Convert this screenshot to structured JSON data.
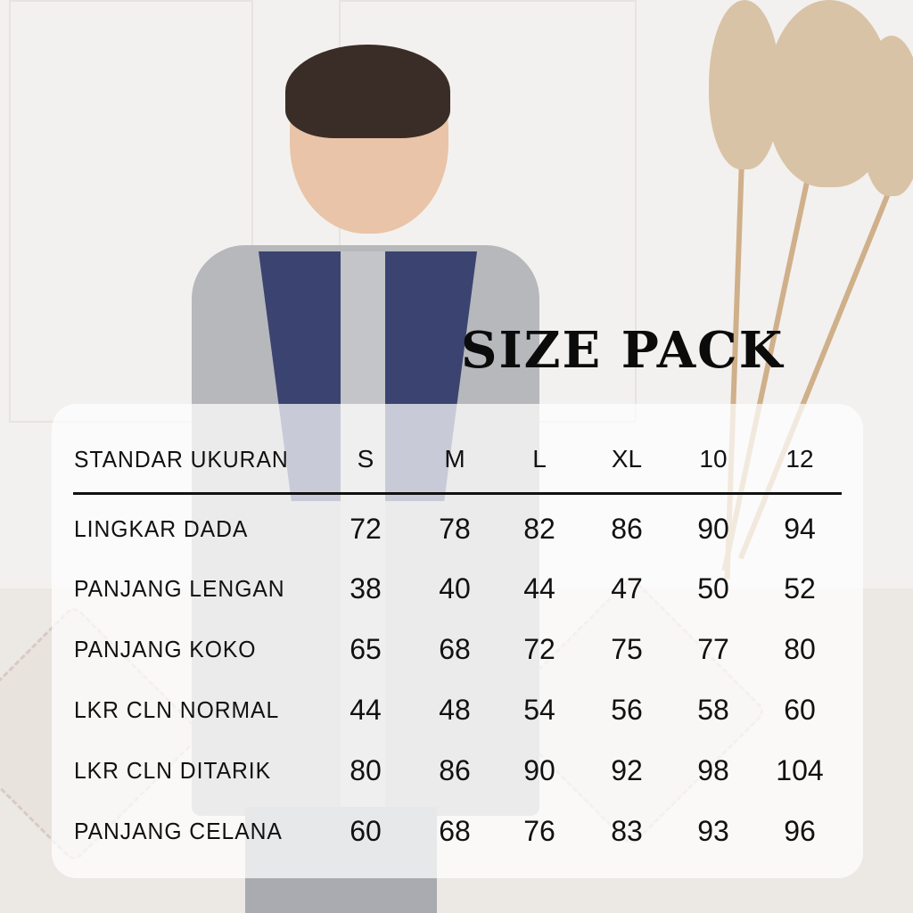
{
  "title": "SIZE PACK",
  "table": {
    "header_label": "STANDAR UKURAN",
    "sizes": [
      "S",
      "M",
      "L",
      "XL",
      "10",
      "12"
    ],
    "rows": [
      {
        "label": "LINGKAR DADA",
        "values": [
          "72",
          "78",
          "82",
          "86",
          "90",
          "94"
        ]
      },
      {
        "label": "PANJANG LENGAN",
        "values": [
          "38",
          "40",
          "44",
          "47",
          "50",
          "52"
        ]
      },
      {
        "label": "PANJANG KOKO",
        "values": [
          "65",
          "68",
          "72",
          "75",
          "77",
          "80"
        ]
      },
      {
        "label": "LKR CLN NORMAL",
        "values": [
          "44",
          "48",
          "54",
          "56",
          "58",
          "60"
        ]
      },
      {
        "label": "LKR CLN DITARIK",
        "values": [
          "80",
          "86",
          "90",
          "92",
          "98",
          "104"
        ]
      },
      {
        "label": "PANJANG CELANA",
        "values": [
          "60",
          "68",
          "76",
          "83",
          "93",
          "96"
        ]
      }
    ]
  },
  "colors": {
    "shirt_grey": "#b7b8bc",
    "shirt_navy": "#3b4470",
    "text": "#111111"
  }
}
